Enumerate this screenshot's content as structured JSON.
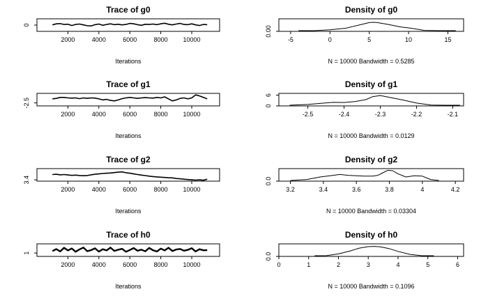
{
  "chart_data": [
    {
      "type": "line",
      "title": "Trace of g0",
      "xlabel": "Iterations",
      "ylabel": "",
      "xlim": [
        0,
        11800
      ],
      "ylim": [
        -3,
        3
      ],
      "xticks": [
        2000,
        4000,
        6000,
        8000,
        10000
      ],
      "yticks": [
        0
      ],
      "series": [
        {
          "values": {
            "x": [
              1000,
              1250,
              1500,
              1750,
              2000,
              2250,
              2500,
              2750,
              3000,
              3250,
              3500,
              3750,
              4000,
              4250,
              4500,
              4750,
              5000,
              5250,
              5500,
              5750,
              6000,
              6250,
              6500,
              6750,
              7000,
              7250,
              7500,
              7750,
              8000,
              8250,
              8500,
              8750,
              9000,
              9250,
              9500,
              9750,
              10000,
              10250,
              10500,
              10750,
              11000
            ],
            "y": [
              0.1,
              0.6,
              0.7,
              0.3,
              0.4,
              -0.2,
              0.3,
              0.5,
              0.1,
              -0.3,
              -0.4,
              0.2,
              0.5,
              -0.1,
              0.3,
              0.6,
              0.2,
              0.4,
              0.1,
              0.3,
              0.8,
              0.6,
              0.2,
              -0.1,
              0.4,
              0.3,
              0.5,
              0.2,
              0.6,
              0.9,
              0.4,
              0.1,
              0.5,
              0.8,
              0.3,
              0.2,
              0.6,
              0.1,
              -0.2,
              0.3,
              0.2
            ]
          }
        }
      ]
    },
    {
      "type": "line",
      "title": "Density of g0",
      "xlabel": "N = 10000   Bandwidth = 0.5285",
      "ylabel": "",
      "xlim": [
        -6.5,
        17
      ],
      "ylim": [
        0,
        0.1
      ],
      "xticks": [
        -5,
        0,
        5,
        10,
        15
      ],
      "yticks": [
        0.0
      ],
      "ytick_labels": [
        "0.00"
      ],
      "series": [
        {
          "values": {
            "x": [
              -4,
              -2,
              0,
              2,
              3,
              4,
              5,
              5.5,
              6,
              7,
              8,
              9,
              10,
              11,
              12,
              14,
              16
            ],
            "y": [
              0.0,
              0.004,
              0.012,
              0.025,
              0.04,
              0.055,
              0.07,
              0.072,
              0.07,
              0.06,
              0.048,
              0.035,
              0.028,
              0.018,
              0.008,
              0.002,
              0.0
            ]
          }
        }
      ]
    },
    {
      "type": "line",
      "title": "Trace of g1",
      "xlabel": "Iterations",
      "ylabel": "",
      "xlim": [
        0,
        11800
      ],
      "ylim": [
        -2.62,
        -2.12
      ],
      "xticks": [
        2000,
        4000,
        6000,
        8000,
        10000
      ],
      "yticks": [
        -2.5
      ],
      "ytick_labels": [
        "-2.5"
      ],
      "series": [
        {
          "values": {
            "x": [
              1000,
              1250,
              1500,
              1750,
              2000,
              2250,
              2500,
              2750,
              3000,
              3250,
              3500,
              3750,
              4000,
              4250,
              4500,
              4750,
              5000,
              5250,
              5500,
              5750,
              6000,
              6250,
              6500,
              6750,
              7000,
              7250,
              7500,
              7750,
              8000,
              8250,
              8500,
              8750,
              9000,
              9250,
              9500,
              9750,
              10000,
              10250,
              10500,
              10750,
              11000
            ],
            "y": [
              -2.34,
              -2.32,
              -2.28,
              -2.28,
              -2.3,
              -2.31,
              -2.3,
              -2.33,
              -2.3,
              -2.32,
              -2.3,
              -2.31,
              -2.34,
              -2.38,
              -2.36,
              -2.4,
              -2.42,
              -2.38,
              -2.33,
              -2.3,
              -2.28,
              -2.3,
              -2.32,
              -2.3,
              -2.29,
              -2.3,
              -2.31,
              -2.28,
              -2.3,
              -2.26,
              -2.34,
              -2.42,
              -2.38,
              -2.32,
              -2.3,
              -2.34,
              -2.3,
              -2.18,
              -2.22,
              -2.28,
              -2.34
            ]
          }
        }
      ]
    },
    {
      "type": "line",
      "title": "Density of g1",
      "xlabel": "N = 10000   Bandwidth = 0.0129",
      "ylabel": "",
      "xlim": [
        -2.58,
        -2.07
      ],
      "ylim": [
        0,
        7
      ],
      "xticks": [
        -2.5,
        -2.4,
        -2.3,
        -2.2,
        -2.1
      ],
      "yticks": [
        0,
        6
      ],
      "series": [
        {
          "values": {
            "x": [
              -2.55,
              -2.5,
              -2.46,
              -2.43,
              -2.4,
              -2.37,
              -2.34,
              -2.32,
              -2.3,
              -2.28,
              -2.26,
              -2.24,
              -2.2,
              -2.16,
              -2.12,
              -2.08
            ],
            "y": [
              0.0,
              0.8,
              1.5,
              2.0,
              1.9,
              2.4,
              3.5,
              5.2,
              5.8,
              5.0,
              4.2,
              3.4,
              1.6,
              0.5,
              0.1,
              0.0
            ]
          }
        }
      ]
    },
    {
      "type": "line",
      "title": "Trace of g2",
      "xlabel": "Iterations",
      "ylabel": "",
      "xlim": [
        0,
        11800
      ],
      "ylim": [
        3.3,
        4.25
      ],
      "xticks": [
        2000,
        4000,
        6000,
        8000,
        10000
      ],
      "yticks": [
        3.4
      ],
      "ytick_labels": [
        "3.4"
      ],
      "series": [
        {
          "values": {
            "x": [
              1000,
              1250,
              1500,
              1750,
              2000,
              2250,
              2500,
              2750,
              3000,
              3250,
              3500,
              3750,
              4000,
              4250,
              4500,
              4750,
              5000,
              5250,
              5500,
              5750,
              6000,
              6250,
              6500,
              6750,
              7000,
              7250,
              7500,
              7750,
              8000,
              8250,
              8500,
              8750,
              9000,
              9250,
              9500,
              9750,
              10000,
              10250,
              10500,
              10750,
              11000
            ],
            "y": [
              3.8,
              3.82,
              3.78,
              3.8,
              3.77,
              3.74,
              3.76,
              3.73,
              3.71,
              3.73,
              3.78,
              3.82,
              3.85,
              3.88,
              3.9,
              3.92,
              3.95,
              3.98,
              4.0,
              3.94,
              3.9,
              3.85,
              3.8,
              3.76,
              3.72,
              3.68,
              3.65,
              3.62,
              3.6,
              3.58,
              3.56,
              3.55,
              3.5,
              3.48,
              3.45,
              3.42,
              3.4,
              3.38,
              3.4,
              3.37,
              3.45
            ]
          }
        }
      ]
    },
    {
      "type": "line",
      "title": "Density of g2",
      "xlabel": "N = 10000   Bandwidth = 0.03304",
      "ylabel": "",
      "xlim": [
        3.13,
        4.25
      ],
      "ylim": [
        0,
        3
      ],
      "xticks": [
        3.2,
        3.4,
        3.6,
        3.8,
        4.0,
        4.2
      ],
      "yticks": [
        0.0
      ],
      "ytick_labels": [
        "0.0"
      ],
      "series": [
        {
          "values": {
            "x": [
              3.2,
              3.3,
              3.38,
              3.44,
              3.5,
              3.55,
              3.6,
              3.65,
              3.7,
              3.73,
              3.76,
              3.79,
              3.82,
              3.85,
              3.9,
              3.95,
              4.0,
              4.05,
              4.1
            ],
            "y": [
              0.0,
              0.4,
              1.0,
              1.3,
              1.6,
              1.4,
              1.3,
              1.2,
              1.2,
              1.4,
              2.0,
              2.6,
              2.5,
              1.8,
              1.0,
              1.3,
              1.2,
              0.4,
              0.0
            ]
          }
        }
      ]
    },
    {
      "type": "line",
      "title": "Trace of h0",
      "xlabel": "Iterations",
      "ylabel": "",
      "xlim": [
        0,
        11800
      ],
      "ylim": [
        -1.6,
        8
      ],
      "xticks": [
        2000,
        4000,
        6000,
        8000,
        10000
      ],
      "yticks": [
        1
      ],
      "series": [
        {
          "values": {
            "x": [
              1000,
              1250,
              1500,
              1750,
              2000,
              2250,
              2500,
              2750,
              3000,
              3250,
              3500,
              3750,
              4000,
              4250,
              4500,
              4750,
              5000,
              5250,
              5500,
              5750,
              6000,
              6250,
              6500,
              6750,
              7000,
              7250,
              7500,
              7750,
              8000,
              8250,
              8500,
              8750,
              9000,
              9250,
              9500,
              9750,
              10000,
              10250,
              10500,
              10750,
              11000
            ],
            "y": [
              2.5,
              4.0,
              2.2,
              5.0,
              3.0,
              4.5,
              2.0,
              3.8,
              5.2,
              2.4,
              3.2,
              4.6,
              2.1,
              3.9,
              3.0,
              5.1,
              2.6,
              3.5,
              4.2,
              2.0,
              3.3,
              4.8,
              2.7,
              3.6,
              2.3,
              4.9,
              3.1,
              2.2,
              4.4,
              3.0,
              5.0,
              2.5,
              3.7,
              4.1,
              2.8,
              3.4,
              4.7,
              2.2,
              3.9,
              3.1,
              3.2
            ]
          }
        }
      ]
    },
    {
      "type": "line",
      "title": "Density of h0",
      "xlabel": "N = 10000   Bandwidth = 0.1096",
      "ylabel": "",
      "xlim": [
        0,
        6.2
      ],
      "ylim": [
        0,
        0.5
      ],
      "xticks": [
        0,
        1,
        2,
        3,
        4,
        5,
        6
      ],
      "yticks": [
        0.0
      ],
      "ytick_labels": [
        "0.0"
      ],
      "series": [
        {
          "values": {
            "x": [
              1.2,
              1.6,
              2.0,
              2.4,
              2.7,
              3.0,
              3.2,
              3.4,
              3.7,
              4.0,
              4.4,
              4.8,
              5.2
            ],
            "y": [
              0.0,
              0.03,
              0.1,
              0.22,
              0.33,
              0.39,
              0.4,
              0.38,
              0.31,
              0.2,
              0.08,
              0.02,
              0.0
            ]
          }
        }
      ]
    }
  ]
}
